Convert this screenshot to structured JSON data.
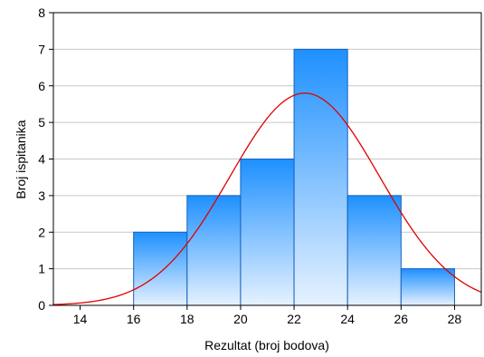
{
  "chart_data": {
    "type": "bar",
    "subtype": "histogram",
    "title": "",
    "xlabel": "Rezultat (broj bodova)",
    "ylabel": "Broj ispitanika",
    "xlim": [
      13,
      29
    ],
    "ylim": [
      0,
      8
    ],
    "x_ticks": [
      14,
      16,
      18,
      20,
      22,
      24,
      26,
      28
    ],
    "y_ticks": [
      0,
      1,
      2,
      3,
      4,
      5,
      6,
      7,
      8
    ],
    "grid": true,
    "bins": [
      {
        "start": 16,
        "end": 18,
        "value": 2
      },
      {
        "start": 18,
        "end": 20,
        "value": 3
      },
      {
        "start": 20,
        "end": 22,
        "value": 4
      },
      {
        "start": 22,
        "end": 24,
        "value": 7
      },
      {
        "start": 24,
        "end": 26,
        "value": 3
      },
      {
        "start": 26,
        "end": 28,
        "value": 1
      }
    ],
    "normal_curve": {
      "mean": 22.4,
      "sd": 2.8,
      "peak": 5.8
    },
    "colors": {
      "bar_top": "#1E90FF",
      "bar_bottom": "#E6F2FF",
      "bar_edge": "#1560BD",
      "curve": "#E00000",
      "grid": "#C8C8C8"
    }
  }
}
